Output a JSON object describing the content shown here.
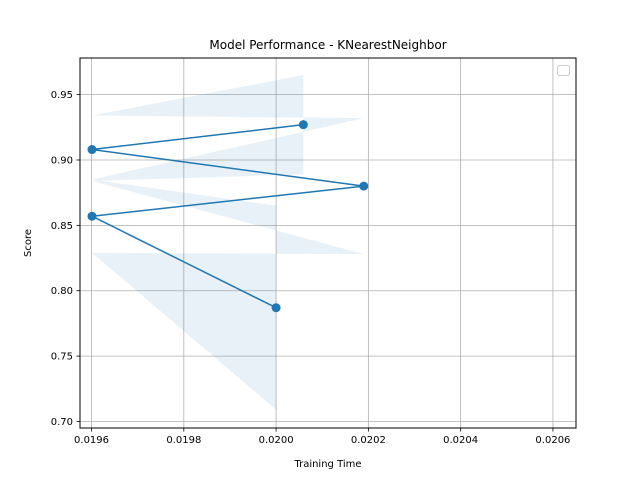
{
  "chart_data": {
    "type": "line",
    "title": "Model Performance - KNearestNeighbor",
    "xlabel": "Training Time",
    "ylabel": "Score",
    "xlim": [
      0.019575,
      0.02065
    ],
    "ylim": [
      0.695,
      0.978
    ],
    "xticks": [
      0.0196,
      0.0198,
      0.02,
      0.0202,
      0.0204,
      0.0206
    ],
    "xtick_labels": [
      "0.0196",
      "0.0198",
      "0.0200",
      "0.0202",
      "0.0204",
      "0.0206"
    ],
    "yticks": [
      0.7,
      0.75,
      0.8,
      0.85,
      0.9,
      0.95
    ],
    "ytick_labels": [
      "0.70",
      "0.75",
      "0.80",
      "0.85",
      "0.90",
      "0.95"
    ],
    "grid": true,
    "legend": "top-right, empty",
    "colors": {
      "line": "#1f77b4",
      "band": "#1f77b4",
      "grid": "#b0b0b0"
    },
    "series": [
      {
        "x": [
          0.020059,
          0.019601,
          0.02019,
          0.019601,
          0.02
        ],
        "y": [
          0.927,
          0.908,
          0.88,
          0.857,
          0.787
        ],
        "lower": [
          0.889,
          0.884,
          0.828,
          0.829,
          0.709
        ],
        "upper": [
          0.965,
          0.934,
          0.932,
          0.885,
          0.865
        ]
      }
    ]
  }
}
